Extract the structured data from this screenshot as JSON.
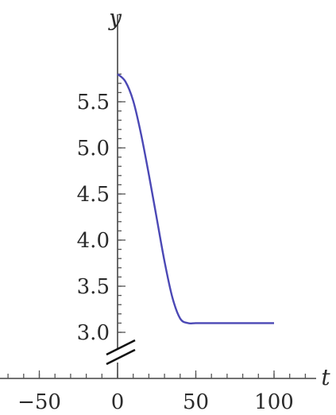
{
  "chart_data": {
    "type": "line",
    "title": "",
    "xlabel": "t",
    "ylabel": "y",
    "xlim": [
      -60,
      105
    ],
    "ylim": [
      2.95,
      5.82
    ],
    "x_ticks": [
      -50,
      0,
      50,
      100
    ],
    "x_tick_labels": [
      "−50",
      "0",
      "50",
      "100"
    ],
    "y_ticks": [
      3.0,
      3.5,
      4.0,
      4.5,
      5.0,
      5.5
    ],
    "y_tick_labels": [
      "3.0",
      "3.5",
      "4.0",
      "4.5",
      "5.0",
      "5.5"
    ],
    "y_axis_break": true,
    "grid": false,
    "series": [
      {
        "color": "#4b48b5",
        "x": [
          0,
          5,
          10,
          15,
          20,
          25,
          30,
          35,
          40,
          45,
          50,
          60,
          70,
          80,
          90,
          100
        ],
        "y": [
          5.8,
          5.72,
          5.51,
          5.15,
          4.71,
          4.24,
          3.77,
          3.38,
          3.15,
          3.1,
          3.1,
          3.1,
          3.1,
          3.1,
          3.1,
          3.1
        ]
      }
    ]
  }
}
